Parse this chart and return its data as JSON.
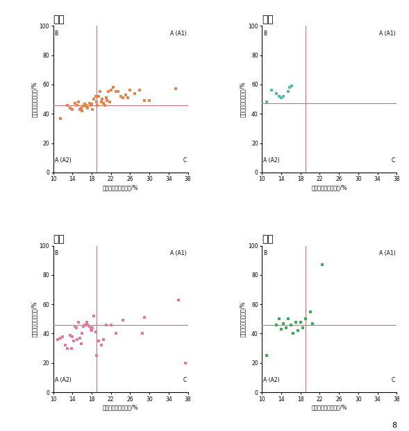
{
  "cities": [
    "成都",
    "昆明",
    "武汉",
    "南昌"
  ],
  "colors": [
    "#E8834A",
    "#4DBFAA",
    "#E8789A",
    "#3DAA55"
  ],
  "vline_x": 19.0,
  "hline_y": [
    46.0,
    47.0,
    46.0,
    46.0
  ],
  "xlim": [
    10,
    38
  ],
  "ylim": [
    0,
    100
  ],
  "xticks": [
    10,
    14,
    18,
    22,
    26,
    30,
    34,
    38
  ],
  "yticks": [
    0,
    20,
    40,
    60,
    80,
    100
  ],
  "xlabel": "人本视角街道绿视率/%",
  "ylabel_chars": [
    "鸟",
    "瞰",
    "视",
    "角",
    "绿",
    "化",
    "覆",
    "盖",
    "率",
    "/",
    "%"
  ],
  "line_color": "#C87080",
  "chengdu_x": [
    11.5,
    13.0,
    13.5,
    14.0,
    14.5,
    15.0,
    15.2,
    15.5,
    15.8,
    16.0,
    16.2,
    16.5,
    16.8,
    17.0,
    17.2,
    17.5,
    17.8,
    18.0,
    18.2,
    18.5,
    18.8,
    19.0,
    19.2,
    19.5,
    19.8,
    20.0,
    20.2,
    20.5,
    20.8,
    21.0,
    21.2,
    21.5,
    21.8,
    22.0,
    22.5,
    23.0,
    23.5,
    24.0,
    24.5,
    25.0,
    25.5,
    26.0,
    27.0,
    28.0,
    29.0,
    30.0,
    35.5
  ],
  "chengdu_y": [
    37.0,
    46.0,
    44.0,
    43.0,
    47.0,
    46.0,
    48.0,
    43.0,
    44.0,
    42.0,
    45.5,
    46.5,
    46.0,
    45.0,
    44.0,
    47.0,
    46.0,
    46.5,
    43.0,
    50.0,
    52.0,
    48.0,
    46.0,
    52.0,
    55.0,
    48.0,
    50.0,
    47.0,
    46.0,
    51.0,
    49.0,
    55.0,
    48.0,
    56.0,
    58.0,
    55.0,
    55.0,
    52.0,
    51.0,
    53.0,
    51.0,
    56.0,
    54.0,
    56.0,
    49.0,
    49.0,
    57.0
  ],
  "kunming_x": [
    11.0,
    12.0,
    13.0,
    13.5,
    14.0,
    14.5,
    15.5,
    15.8,
    16.2
  ],
  "kunming_y": [
    48.0,
    56.0,
    54.0,
    52.0,
    51.0,
    52.0,
    55.0,
    58.0,
    59.0
  ],
  "wuhan_x": [
    11.0,
    11.5,
    12.0,
    12.5,
    13.0,
    13.5,
    13.8,
    14.0,
    14.2,
    14.5,
    14.8,
    15.0,
    15.2,
    15.5,
    15.8,
    16.0,
    16.2,
    16.5,
    16.8,
    17.0,
    17.2,
    17.5,
    17.8,
    18.0,
    18.2,
    18.5,
    18.8,
    19.0,
    19.5,
    20.0,
    20.5,
    21.0,
    22.0,
    23.0,
    24.5,
    28.5,
    29.0,
    36.0,
    37.5
  ],
  "wuhan_y": [
    36.0,
    37.0,
    38.0,
    32.0,
    30.0,
    39.0,
    30.0,
    38.0,
    35.0,
    45.0,
    44.0,
    36.0,
    48.0,
    37.0,
    33.0,
    40.0,
    45.0,
    46.0,
    46.0,
    48.0,
    46.0,
    45.0,
    43.0,
    42.0,
    44.0,
    52.0,
    41.0,
    25.0,
    35.0,
    32.0,
    36.0,
    46.0,
    46.0,
    40.0,
    49.0,
    40.0,
    51.0,
    63.0,
    20.0
  ],
  "nanchang_x": [
    11.0,
    13.0,
    13.5,
    14.0,
    14.5,
    15.0,
    15.5,
    16.0,
    16.5,
    17.0,
    17.5,
    18.0,
    18.5,
    19.0,
    20.0,
    20.5,
    22.5
  ],
  "nanchang_y": [
    25.0,
    46.0,
    50.0,
    43.0,
    47.0,
    44.0,
    50.0,
    46.0,
    40.0,
    48.0,
    42.0,
    48.0,
    44.0,
    50.0,
    55.0,
    47.0,
    87.0
  ],
  "fig_number": "8"
}
